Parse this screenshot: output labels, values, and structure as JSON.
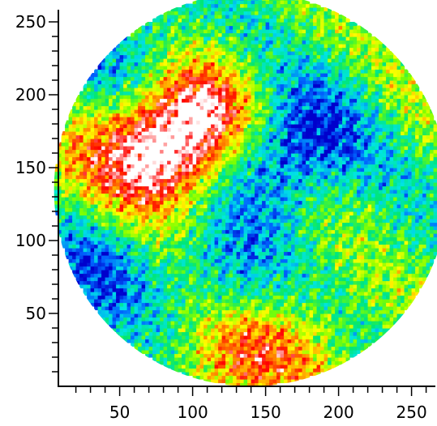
{
  "chart_data": {
    "type": "heatmap",
    "title": "",
    "xlabel": "",
    "ylabel": "",
    "xlim": [
      8,
      272
    ],
    "ylim": [
      0,
      270
    ],
    "x_ticks": [
      "50",
      "100",
      "150",
      "200",
      "250"
    ],
    "x_tick_values": [
      50,
      100,
      150,
      200,
      250
    ],
    "y_ticks": [
      "50",
      "100",
      "150",
      "200",
      "250"
    ],
    "y_tick_values": [
      50,
      100,
      150,
      200,
      250
    ],
    "x_minor_step": 10,
    "y_minor_step": 10,
    "grid": false,
    "legend": "none",
    "region": {
      "shape": "circle",
      "center": [
        140,
        135
      ],
      "radius": 135
    },
    "colormap": [
      "#0000cc",
      "#0066ff",
      "#00e5e5",
      "#00e676",
      "#7fff00",
      "#ffff00",
      "#ff8c00",
      "#ff0000",
      "#ffffff"
    ],
    "features": [
      {
        "label": "hot ridge",
        "x": 85,
        "y": 165,
        "level": 0.85
      },
      {
        "label": "hot ridge",
        "x": 110,
        "y": 190,
        "level": 0.82
      },
      {
        "label": "hot ridge",
        "x": 70,
        "y": 150,
        "level": 0.75
      },
      {
        "label": "hot spot",
        "x": 125,
        "y": 20,
        "level": 0.8
      },
      {
        "label": "warm band",
        "x": 180,
        "y": 30,
        "level": 0.62
      },
      {
        "label": "warm band",
        "x": 40,
        "y": 170,
        "level": 0.6
      },
      {
        "label": "cold trough",
        "x": 150,
        "y": 150,
        "level": 0.1
      },
      {
        "label": "cold trough",
        "x": 185,
        "y": 175,
        "level": 0.12
      },
      {
        "label": "cold trough",
        "x": 120,
        "y": 70,
        "level": 0.15
      },
      {
        "label": "cold trough",
        "x": 40,
        "y": 85,
        "level": 0.12
      },
      {
        "label": "cold trough",
        "x": 60,
        "y": 230,
        "level": 0.15
      },
      {
        "label": "mid region",
        "x": 225,
        "y": 105,
        "level": 0.38
      },
      {
        "label": "mid region",
        "x": 240,
        "y": 190,
        "level": 0.45
      }
    ]
  }
}
